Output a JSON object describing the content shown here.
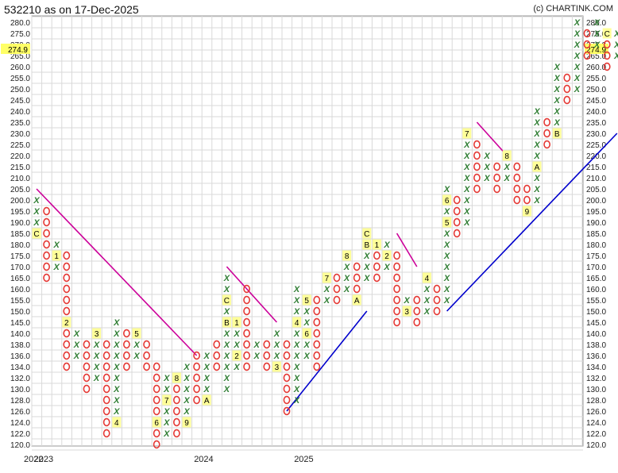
{
  "header": {
    "title": "532210 as on 17-Dec-2025",
    "credit": "(c) CHARTINK.COM"
  },
  "chart_data": {
    "type": "point-and-figure",
    "symbol": "532210",
    "as_on": "17-Dec-2025",
    "price_levels": [
      280.0,
      275.0,
      270.0,
      265.0,
      260.0,
      255.0,
      250.0,
      245.0,
      240.0,
      235.0,
      230.0,
      225.0,
      220.0,
      215.0,
      210.0,
      205.0,
      200.0,
      195.0,
      190.0,
      185.0,
      180.0,
      175.0,
      170.0,
      165.0,
      160.0,
      155.0,
      150.0,
      145.0,
      140.0,
      138.0,
      136.0,
      134.0,
      132.0,
      130.0,
      128.0,
      126.0,
      124.0,
      122.0,
      120.0
    ],
    "y_tick_labels": [
      "280.0",
      "275.0",
      "270.0",
      "265.0",
      "260.0",
      "255.0",
      "250.0",
      "245.0",
      "240.0",
      "235.0",
      "230.0",
      "225.0",
      "220.0",
      "215.0",
      "210.0",
      "205.0",
      "200.0",
      "195.0",
      "190.0",
      "185.0",
      "180.0",
      "175.0",
      "170.0",
      "165.0",
      "160.0",
      "155.0",
      "150.0",
      "145.0",
      "140.0",
      "138.0",
      "136.0",
      "134.0",
      "132.0",
      "130.0",
      "128.0",
      "126.0",
      "124.0",
      "122.0",
      "120.0"
    ],
    "last_price": "274.9",
    "x_labels": [
      {
        "text": "2022",
        "column": 0
      },
      {
        "text": "2023",
        "column": 1
      },
      {
        "text": "2024",
        "column": 17
      },
      {
        "text": "2025",
        "column": 27
      }
    ],
    "columns": [
      {
        "col": 0,
        "type": "X",
        "from": 190.0,
        "to": 200.0,
        "marks": {
          "185.0": "C"
        }
      },
      {
        "col": 1,
        "type": "O",
        "from": 195.0,
        "to": 165.0
      },
      {
        "col": 2,
        "type": "X",
        "from": 170.0,
        "to": 180.0,
        "marks": {
          "175.0": "1"
        }
      },
      {
        "col": 3,
        "type": "O",
        "from": 175.0,
        "to": 134.0,
        "marks": {
          "145.0": "2"
        }
      },
      {
        "col": 4,
        "type": "X",
        "from": 136.0,
        "to": 140.0
      },
      {
        "col": 5,
        "type": "O",
        "from": 138.0,
        "to": 130.0
      },
      {
        "col": 6,
        "type": "X",
        "from": 132.0,
        "to": 140.0,
        "marks": {
          "140.0": "3"
        }
      },
      {
        "col": 7,
        "type": "O",
        "from": 138.0,
        "to": 122.0
      },
      {
        "col": 8,
        "type": "X",
        "from": 126.0,
        "to": 145.0,
        "marks": {
          "124.0": "4"
        }
      },
      {
        "col": 9,
        "type": "O",
        "from": 140.0,
        "to": 134.0
      },
      {
        "col": 10,
        "type": "X",
        "from": 136.0,
        "to": 140.0,
        "marks": {
          "140.0": "5"
        }
      },
      {
        "col": 11,
        "type": "O",
        "from": 138.0,
        "to": 134.0
      },
      {
        "col": 12,
        "type": "O",
        "from": 134.0,
        "to": 120.0,
        "marks": {
          "124.0": "6"
        }
      },
      {
        "col": 13,
        "type": "X",
        "from": 122.0,
        "to": 132.0,
        "marks": {
          "128.0": "7"
        }
      },
      {
        "col": 14,
        "type": "O",
        "from": 130.0,
        "to": 122.0,
        "marks": {
          "132.0": "8"
        }
      },
      {
        "col": 15,
        "type": "X",
        "from": 126.0,
        "to": 134.0,
        "marks": {
          "124.0": "9"
        }
      },
      {
        "col": 16,
        "type": "O",
        "from": 136.0,
        "to": 128.0
      },
      {
        "col": 17,
        "type": "X",
        "from": 130.0,
        "to": 136.0,
        "marks": {
          "128.0": "A"
        }
      },
      {
        "col": 18,
        "type": "O",
        "from": 138.0,
        "to": 134.0
      },
      {
        "col": 19,
        "type": "X",
        "from": 130.0,
        "to": 165.0,
        "marks": {
          "155.0": "C",
          "145.0": "B"
        }
      },
      {
        "col": 20,
        "type": "X",
        "from": 134.0,
        "to": 140.0,
        "marks": {
          "145.0": "1",
          "136.0": "2"
        }
      },
      {
        "col": 21,
        "type": "O",
        "from": 160.0,
        "to": 134.0
      },
      {
        "col": 22,
        "type": "X",
        "from": 136.0,
        "to": 138.0
      },
      {
        "col": 23,
        "type": "O",
        "from": 138.0,
        "to": 134.0
      },
      {
        "col": 24,
        "type": "X",
        "from": 136.0,
        "to": 140.0,
        "marks": {
          "134.0": "3"
        }
      },
      {
        "col": 25,
        "type": "O",
        "from": 138.0,
        "to": 126.0
      },
      {
        "col": 26,
        "type": "X",
        "from": 128.0,
        "to": 160.0,
        "marks": {
          "145.0": "4"
        }
      },
      {
        "col": 27,
        "type": "X",
        "from": 136.0,
        "to": 150.0,
        "marks": {
          "155.0": "5",
          "140.0": "6"
        }
      },
      {
        "col": 28,
        "type": "O",
        "from": 155.0,
        "to": 134.0
      },
      {
        "col": 29,
        "type": "X",
        "from": 155.0,
        "to": 165.0,
        "marks": {
          "165.0": "7"
        }
      },
      {
        "col": 30,
        "type": "O",
        "from": 165.0,
        "to": 155.0
      },
      {
        "col": 31,
        "type": "X",
        "from": 160.0,
        "to": 175.0,
        "marks": {
          "175.0": "8"
        }
      },
      {
        "col": 32,
        "type": "O",
        "from": 170.0,
        "to": 155.0,
        "marks": {
          "155.0": "A"
        }
      },
      {
        "col": 33,
        "type": "X",
        "from": 165.0,
        "to": 180.0,
        "marks": {
          "185.0": "C",
          "180.0": "B"
        }
      },
      {
        "col": 34,
        "type": "O",
        "from": 175.0,
        "to": 165.0,
        "marks": {
          "180.0": "1"
        }
      },
      {
        "col": 35,
        "type": "X",
        "from": 170.0,
        "to": 180.0,
        "marks": {
          "175.0": "2"
        }
      },
      {
        "col": 36,
        "type": "O",
        "from": 175.0,
        "to": 145.0
      },
      {
        "col": 37,
        "type": "X",
        "from": 150.0,
        "to": 155.0,
        "marks": {
          "150.0": "3"
        }
      },
      {
        "col": 38,
        "type": "O",
        "from": 155.0,
        "to": 145.0
      },
      {
        "col": 39,
        "type": "X",
        "from": 150.0,
        "to": 160.0,
        "marks": {
          "165.0": "4"
        }
      },
      {
        "col": 40,
        "type": "O",
        "from": 160.0,
        "to": 150.0
      },
      {
        "col": 41,
        "type": "X",
        "from": 155.0,
        "to": 205.0,
        "marks": {
          "200.0": "6",
          "190.0": "5"
        }
      },
      {
        "col": 42,
        "type": "O",
        "from": 200.0,
        "to": 185.0
      },
      {
        "col": 43,
        "type": "X",
        "from": 190.0,
        "to": 230.0,
        "marks": {
          "230.0": "7"
        }
      },
      {
        "col": 44,
        "type": "O",
        "from": 225.0,
        "to": 205.0
      },
      {
        "col": 45,
        "type": "X",
        "from": 210.0,
        "to": 220.0
      },
      {
        "col": 46,
        "type": "O",
        "from": 215.0,
        "to": 205.0
      },
      {
        "col": 47,
        "type": "X",
        "from": 210.0,
        "to": 215.0,
        "marks": {
          "220.0": "8"
        }
      },
      {
        "col": 48,
        "type": "O",
        "from": 215.0,
        "to": 200.0
      },
      {
        "col": 49,
        "type": "O",
        "from": 205.0,
        "to": 195.0,
        "marks": {
          "195.0": "9"
        }
      },
      {
        "col": 50,
        "type": "X",
        "from": 200.0,
        "to": 240.0,
        "marks": {
          "215.0": "A"
        }
      },
      {
        "col": 51,
        "type": "O",
        "from": 235.0,
        "to": 225.0
      },
      {
        "col": 52,
        "type": "X",
        "from": 235.0,
        "to": 260.0,
        "marks": {
          "230.0": "B"
        }
      },
      {
        "col": 53,
        "type": "O",
        "from": 255.0,
        "to": 245.0
      },
      {
        "col": 54,
        "type": "X",
        "from": 250.0,
        "to": 280.0
      },
      {
        "col": 55,
        "type": "O",
        "from": 275.0,
        "to": 265.0
      },
      {
        "col": 56,
        "type": "X",
        "from": 270.0,
        "to": 280.0
      },
      {
        "col": 57,
        "type": "O",
        "from": 275.0,
        "to": 260.0,
        "marks": {
          "275.0": "C"
        }
      },
      {
        "col": 58,
        "type": "X",
        "from": 265.0,
        "to": 275.0
      }
    ],
    "trendlines": [
      {
        "kind": "resistance",
        "color": "#cc0099",
        "from": {
          "col": 0,
          "price": 205.0
        },
        "to": {
          "col": 16,
          "price": 136.0
        }
      },
      {
        "kind": "resistance",
        "color": "#cc0099",
        "from": {
          "col": 19,
          "price": 170.0
        },
        "to": {
          "col": 24,
          "price": 145.0
        }
      },
      {
        "kind": "resistance",
        "color": "#cc0099",
        "from": {
          "col": 36,
          "price": 185.0
        },
        "to": {
          "col": 38,
          "price": 170.0
        }
      },
      {
        "kind": "resistance",
        "color": "#cc0099",
        "from": {
          "col": 44,
          "price": 235.0
        },
        "to": {
          "col": 47,
          "price": 220.0
        }
      },
      {
        "kind": "support",
        "color": "#0000cc",
        "from": {
          "col": 25,
          "price": 126.0
        },
        "to": {
          "col": 33,
          "price": 150.0
        }
      },
      {
        "kind": "support",
        "color": "#0000cc",
        "from": {
          "col": 41,
          "price": 150.0
        },
        "to": {
          "col": 58,
          "price": 230.0
        }
      }
    ],
    "colors": {
      "x_mark": "#2e7d32",
      "o_mark": "#e53935",
      "month_box": "#ffff99",
      "grid": "#d9d9d9",
      "last_price_highlight": "#ffff66"
    }
  }
}
